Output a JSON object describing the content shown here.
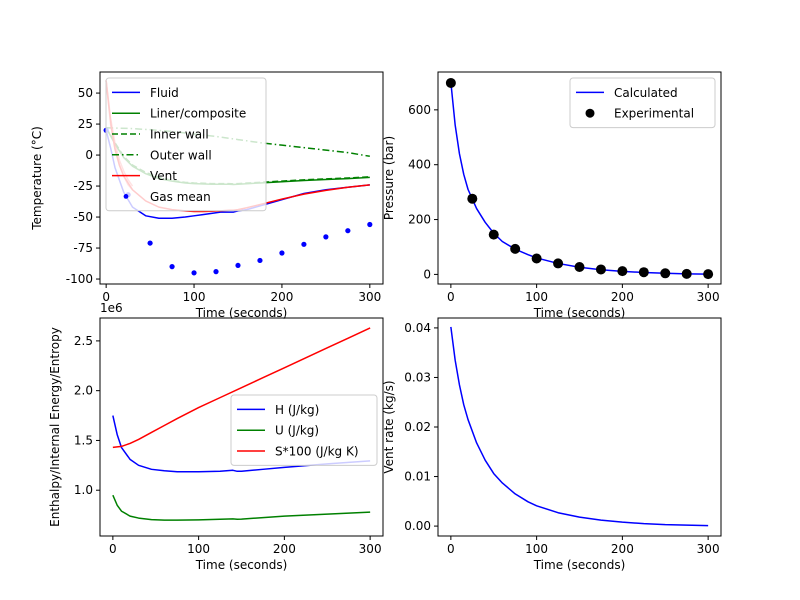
{
  "chart_data": [
    {
      "type": "line",
      "xlabel": "Time (seconds)",
      "ylabel": "Temperature (°C)",
      "xlim": [
        -7,
        315
      ],
      "ylim": [
        -104,
        67
      ],
      "xticks": [
        0,
        100,
        200,
        300
      ],
      "yticks": [
        -100,
        -75,
        -50,
        -25,
        0,
        25,
        50
      ],
      "legend_loc": "upper-left",
      "series": [
        {
          "name": "Fluid",
          "color": "#0000ff",
          "style": "solid",
          "x": [
            0,
            5,
            10,
            20,
            30,
            45,
            60,
            75,
            90,
            100,
            110,
            120,
            130,
            140,
            145,
            150,
            160,
            180,
            200,
            225,
            250,
            275,
            300
          ],
          "y": [
            20,
            6,
            -10,
            -30,
            -42,
            -49,
            -51,
            -51,
            -50,
            -49,
            -48,
            -47,
            -46,
            -46,
            -46,
            -45,
            -44,
            -40,
            -36,
            -31,
            -28,
            -26,
            -24
          ]
        },
        {
          "name": "Liner/composite",
          "color": "#008000",
          "style": "solid",
          "x": [
            0,
            10,
            20,
            30,
            45,
            60,
            75,
            90,
            100,
            120,
            140,
            145,
            150,
            175,
            200,
            225,
            250,
            275,
            300
          ],
          "y": [
            22,
            9,
            -2,
            -9,
            -15,
            -19,
            -21,
            -22.5,
            -23,
            -23.5,
            -23.5,
            -23.7,
            -23.5,
            -22.5,
            -21.5,
            -20.5,
            -19.7,
            -19,
            -18
          ]
        },
        {
          "name": "Inner wall",
          "color": "#008000",
          "style": "dashed",
          "x": [
            0,
            10,
            20,
            30,
            45,
            60,
            75,
            90,
            100,
            120,
            140,
            145,
            150,
            175,
            200,
            225,
            250,
            275,
            300
          ],
          "y": [
            22,
            10,
            -1,
            -8,
            -14,
            -18,
            -20.5,
            -22,
            -22.5,
            -23,
            -23,
            -23.2,
            -23,
            -22,
            -21,
            -20,
            -19.2,
            -18.5,
            -17.5
          ]
        },
        {
          "name": "Outer wall",
          "color": "#008000",
          "style": "dashdot",
          "x": [
            0,
            25,
            50,
            75,
            100,
            125,
            150,
            175,
            200,
            225,
            250,
            275,
            300
          ],
          "y": [
            22,
            21.5,
            20.5,
            19,
            17,
            15,
            12.5,
            10,
            8,
            6,
            4,
            2,
            -1
          ]
        },
        {
          "name": "Vent",
          "color": "#ff0000",
          "style": "solid",
          "x": [
            0,
            3,
            6,
            10,
            15,
            20,
            30,
            45,
            60,
            75,
            90,
            100,
            110,
            120,
            130,
            140,
            145,
            150,
            160,
            180,
            200,
            225,
            250,
            275,
            300
          ],
          "y": [
            60,
            40,
            22,
            5,
            -8,
            -17,
            -28,
            -37,
            -42,
            -44,
            -45,
            -45.5,
            -45.5,
            -45.3,
            -45,
            -44.5,
            -44.5,
            -44,
            -42.5,
            -39,
            -35.5,
            -31.5,
            -28.5,
            -26,
            -24
          ]
        },
        {
          "name": "Gas mean",
          "color": "#0000ff",
          "style": "points",
          "x": [
            0,
            25,
            50,
            75,
            100,
            125,
            150,
            175,
            200,
            225,
            250,
            275,
            300
          ],
          "y": [
            20,
            -32,
            -71,
            -90,
            -95,
            -94,
            -89,
            -85,
            -79,
            -72,
            -66,
            -61,
            -56
          ]
        }
      ],
      "overlays": [
        {
          "color": "#ff0000",
          "style": "solid",
          "x": [
            0,
            5,
            10,
            15,
            20,
            25,
            30
          ],
          "y": [
            60,
            25,
            5,
            -8,
            -17,
            -24,
            -28
          ]
        },
        {
          "color": "#ff0000",
          "style": "solid",
          "x": [
            0,
            5,
            10,
            15,
            20,
            25,
            30
          ],
          "y": [
            60,
            30,
            10,
            -4,
            -13,
            -20,
            -25
          ]
        }
      ]
    },
    {
      "type": "line",
      "xlabel": "Time (seconds)",
      "ylabel": "Pressure (bar)",
      "xlim": [
        -15,
        315
      ],
      "ylim": [
        -35,
        738
      ],
      "xticks": [
        0,
        100,
        200,
        300
      ],
      "yticks": [
        0,
        200,
        400,
        600
      ],
      "legend_loc": "upper-right",
      "series": [
        {
          "name": "Calculated",
          "color": "#0000ff",
          "style": "solid",
          "x": [
            0,
            5,
            10,
            15,
            20,
            25,
            30,
            40,
            50,
            60,
            75,
            90,
            100,
            125,
            150,
            175,
            200,
            225,
            250,
            275,
            300
          ],
          "y": [
            700,
            545,
            440,
            365,
            310,
            275,
            240,
            190,
            150,
            120,
            92,
            72,
            60,
            40,
            26,
            17,
            11,
            7,
            4,
            2,
            1
          ]
        },
        {
          "name": "Experimental",
          "color": "#000000",
          "style": "markers",
          "x": [
            0,
            25,
            50,
            75,
            100,
            125,
            150,
            175,
            200,
            225,
            250,
            275,
            300
          ],
          "y": [
            698,
            276,
            145,
            93,
            58,
            40,
            27,
            18,
            12,
            8,
            4,
            2,
            1
          ]
        }
      ]
    },
    {
      "type": "line",
      "xlabel": "Time (seconds)",
      "ylabel": "Enthalpy/Internal Energy/Entropy",
      "offset_text": "1e6",
      "xlim": [
        -15,
        315
      ],
      "ylim": [
        0.54,
        2.73
      ],
      "xticks": [
        0,
        100,
        200,
        300
      ],
      "yticks": [
        1.0,
        1.5,
        2.0,
        2.5
      ],
      "ytick_labels": [
        "1.0",
        "1.5",
        "2.0",
        "2.5"
      ],
      "legend_loc": "center-right",
      "series": [
        {
          "name": "H (J/kg)",
          "color": "#0000ff",
          "style": "solid",
          "x": [
            0,
            5,
            10,
            20,
            30,
            45,
            60,
            75,
            100,
            125,
            140,
            145,
            150,
            175,
            200,
            250,
            300
          ],
          "y": [
            1.75,
            1.56,
            1.43,
            1.31,
            1.25,
            1.21,
            1.195,
            1.185,
            1.185,
            1.19,
            1.2,
            1.19,
            1.19,
            1.21,
            1.23,
            1.265,
            1.295
          ]
        },
        {
          "name": "U (J/kg)",
          "color": "#008000",
          "style": "solid",
          "x": [
            0,
            5,
            10,
            20,
            30,
            45,
            60,
            75,
            100,
            125,
            140,
            145,
            150,
            175,
            200,
            250,
            300
          ],
          "y": [
            0.95,
            0.85,
            0.79,
            0.74,
            0.72,
            0.705,
            0.7,
            0.7,
            0.702,
            0.708,
            0.712,
            0.708,
            0.71,
            0.725,
            0.74,
            0.76,
            0.78
          ]
        },
        {
          "name": "S*100 (J/kg K)",
          "color": "#ff0000",
          "style": "solid",
          "x": [
            0,
            10,
            20,
            30,
            45,
            60,
            75,
            100,
            125,
            150,
            175,
            200,
            225,
            250,
            275,
            300
          ],
          "y": [
            1.43,
            1.44,
            1.47,
            1.51,
            1.58,
            1.65,
            1.72,
            1.83,
            1.93,
            2.03,
            2.13,
            2.23,
            2.33,
            2.43,
            2.53,
            2.63
          ]
        }
      ]
    },
    {
      "type": "line",
      "xlabel": "Time (seconds)",
      "ylabel": "Vent rate (kg/s)",
      "xlim": [
        -15,
        315
      ],
      "ylim": [
        -0.002,
        0.042
      ],
      "xticks": [
        0,
        100,
        200,
        300
      ],
      "yticks": [
        0.0,
        0.01,
        0.02,
        0.03,
        0.04
      ],
      "ytick_labels": [
        "0.00",
        "0.01",
        "0.02",
        "0.03",
        "0.04"
      ],
      "legend_loc": "",
      "series": [
        {
          "name": "",
          "color": "#0000ff",
          "style": "solid",
          "x": [
            0,
            5,
            10,
            15,
            20,
            30,
            40,
            50,
            60,
            75,
            90,
            100,
            125,
            150,
            175,
            200,
            225,
            250,
            275,
            300
          ],
          "y": [
            0.0402,
            0.0335,
            0.0285,
            0.0245,
            0.0215,
            0.0168,
            0.0133,
            0.0106,
            0.0087,
            0.0065,
            0.0049,
            0.0041,
            0.0027,
            0.0018,
            0.0012,
            0.0008,
            0.0005,
            0.0003,
            0.0002,
            0.0001
          ]
        }
      ]
    }
  ]
}
